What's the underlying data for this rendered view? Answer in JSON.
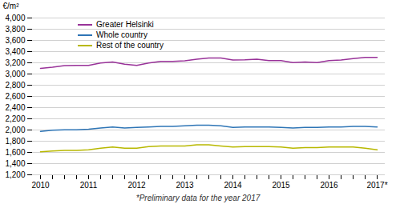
{
  "chart_data": {
    "type": "line",
    "ylabel": "€/m²",
    "caption": "*Preliminary data for the year 2017",
    "categories": [
      "2010",
      null,
      null,
      null,
      "2011",
      null,
      null,
      null,
      "2012",
      null,
      null,
      null,
      "2013",
      null,
      null,
      null,
      "2014",
      null,
      null,
      null,
      "2015",
      null,
      null,
      null,
      "2016",
      null,
      null,
      null,
      "2017*"
    ],
    "series": [
      {
        "name": "Greater Helsinki",
        "color": "#993399",
        "values": [
          3100,
          3120,
          3150,
          3155,
          3155,
          3195,
          3215,
          3175,
          3155,
          3195,
          3225,
          3225,
          3235,
          3265,
          3285,
          3285,
          3250,
          3255,
          3265,
          3240,
          3240,
          3205,
          3215,
          3205,
          3240,
          3250,
          3275,
          3295,
          3295
        ]
      },
      {
        "name": "Whole country",
        "color": "#2e75b6",
        "values": [
          1975,
          1995,
          2005,
          2005,
          2015,
          2035,
          2055,
          2035,
          2045,
          2055,
          2065,
          2065,
          2075,
          2085,
          2085,
          2075,
          2045,
          2055,
          2055,
          2055,
          2045,
          2035,
          2045,
          2045,
          2055,
          2055,
          2065,
          2065,
          2055
        ]
      },
      {
        "name": "Rest of the country",
        "color": "#b8b800",
        "values": [
          1610,
          1625,
          1635,
          1635,
          1645,
          1675,
          1695,
          1675,
          1675,
          1705,
          1715,
          1715,
          1715,
          1735,
          1735,
          1715,
          1695,
          1705,
          1705,
          1705,
          1695,
          1675,
          1685,
          1685,
          1695,
          1695,
          1695,
          1675,
          1645
        ]
      }
    ],
    "ylim": [
      1200,
      4000
    ],
    "yticks": [
      1200,
      1400,
      1600,
      1800,
      2000,
      2200,
      2400,
      2600,
      2800,
      3000,
      3200,
      3400,
      3600,
      3800,
      4000
    ],
    "grid": true,
    "legend": "upper left"
  }
}
